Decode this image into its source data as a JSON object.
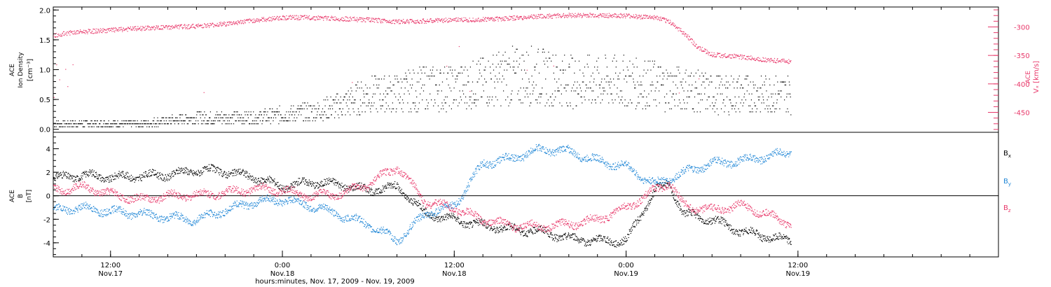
{
  "chart_data": [
    {
      "type": "scatter",
      "panel": "top",
      "ylabel_left_lines": [
        "ACE",
        "Ion Density",
        "[cm⁻³]"
      ],
      "ylabel_right": "Vₓ [km/s]",
      "ylabel_right_sub": "ACE",
      "yticks_left": [
        "0.0",
        "0.5",
        "1.0",
        "1.5",
        "2.0"
      ],
      "yticks_right": [
        "-300",
        "-350",
        "-400",
        "-450"
      ],
      "ylim_left": [
        -0.05,
        2.05
      ],
      "ylim_right": [
        -485,
        -265
      ],
      "series": [
        {
          "axis": "left",
          "color": "#000000",
          "x_hours": [
            0,
            2,
            4,
            6,
            8,
            10,
            12,
            14,
            16,
            18,
            20,
            22,
            24,
            26,
            28,
            30,
            32,
            34,
            36,
            38,
            40,
            42,
            43,
            44,
            46,
            48,
            50,
            51.5
          ],
          "y": [
            0.1,
            0.1,
            0.1,
            0.1,
            0.15,
            0.2,
            0.2,
            0.2,
            0.25,
            0.3,
            0.4,
            0.6,
            0.6,
            0.7,
            0.7,
            0.8,
            0.9,
            0.9,
            0.8,
            0.8,
            0.8,
            0.75,
            0.7,
            0.7,
            0.6,
            0.6,
            0.6,
            0.6
          ]
        },
        {
          "axis": "right",
          "color": "#e8386a",
          "x_hours": [
            0,
            1,
            2,
            4,
            6,
            8,
            10,
            12,
            14,
            16,
            18,
            20,
            22,
            24,
            26,
            28,
            30,
            32,
            34,
            36,
            38,
            40,
            42,
            43,
            44,
            45,
            46,
            48,
            50,
            51.5
          ],
          "y": [
            -315,
            -310,
            -308,
            -305,
            -302,
            -300,
            -298,
            -294,
            -288,
            -283,
            -283,
            -285,
            -287,
            -290,
            -289,
            -287,
            -286,
            -284,
            -281,
            -279,
            -279,
            -280,
            -283,
            -290,
            -310,
            -335,
            -348,
            -352,
            -358,
            -360
          ]
        }
      ]
    },
    {
      "type": "scatter",
      "panel": "bottom",
      "ylabel_lines": [
        "ACE",
        "B",
        "[nT]"
      ],
      "yticks": [
        "4",
        "2",
        "0",
        "-2",
        "-4"
      ],
      "ylim": [
        -5.2,
        5.4
      ],
      "x_range_hours": [
        0,
        66
      ],
      "xticks": [
        {
          "time": "12:00",
          "date": "Nov.17"
        },
        {
          "time": "0:00",
          "date": "Nov.18"
        },
        {
          "time": "12:00",
          "date": "Nov.18"
        },
        {
          "time": "0:00",
          "date": "Nov.19"
        },
        {
          "time": "12:00",
          "date": "Nov.19"
        }
      ],
      "xlabel": "hours:minutes, Nov. 17, 2009 - Nov. 19, 2009",
      "series": [
        {
          "name": "B",
          "sub": "x",
          "color": "#000000",
          "x_hours": [
            0,
            2,
            4,
            6,
            8,
            10,
            12,
            14,
            16,
            18,
            20,
            22,
            24,
            26,
            28,
            30,
            32,
            34,
            36,
            38,
            40,
            42,
            43,
            44,
            46,
            48,
            50,
            51.5
          ],
          "y": [
            1.5,
            1.8,
            1.6,
            1.7,
            1.8,
            2.2,
            2.1,
            1.6,
            0.8,
            1.2,
            1.0,
            0.5,
            0.8,
            -1.5,
            -2.0,
            -2.5,
            -2.8,
            -3.0,
            -3.6,
            -3.8,
            -3.8,
            0.5,
            1.0,
            -1.5,
            -2.0,
            -3.0,
            -3.5,
            -3.8
          ]
        },
        {
          "name": "B",
          "sub": "y",
          "color": "#1f86d6",
          "x_hours": [
            0,
            2,
            4,
            6,
            8,
            10,
            12,
            14,
            16,
            18,
            20,
            22,
            24,
            26,
            28,
            30,
            32,
            34,
            36,
            38,
            40,
            42,
            43,
            44,
            46,
            48,
            50,
            51.5
          ],
          "y": [
            -1.2,
            -1.0,
            -1.3,
            -1.5,
            -1.8,
            -2.0,
            -1.2,
            -0.5,
            -0.3,
            -0.8,
            -1.6,
            -2.4,
            -3.8,
            -1.5,
            -0.8,
            2.8,
            3.2,
            4.0,
            3.8,
            3.0,
            2.5,
            1.0,
            1.5,
            2.0,
            2.8,
            3.0,
            3.4,
            3.8
          ]
        },
        {
          "name": "B",
          "sub": "z",
          "color": "#e8386a",
          "x_hours": [
            0,
            2,
            4,
            6,
            8,
            10,
            12,
            14,
            16,
            18,
            20,
            22,
            24,
            26,
            28,
            30,
            32,
            34,
            36,
            38,
            40,
            42,
            43,
            44,
            46,
            48,
            50,
            51.5
          ],
          "y": [
            0.5,
            0.8,
            0.2,
            -0.3,
            0.0,
            0.1,
            0.3,
            0.6,
            0.5,
            0.0,
            0.2,
            1.0,
            2.5,
            -0.5,
            -1.0,
            -2.0,
            -2.5,
            -2.6,
            -2.4,
            -2.0,
            -1.0,
            0.5,
            1.2,
            -0.8,
            -1.2,
            -0.8,
            -1.6,
            -2.4
          ]
        }
      ]
    }
  ]
}
